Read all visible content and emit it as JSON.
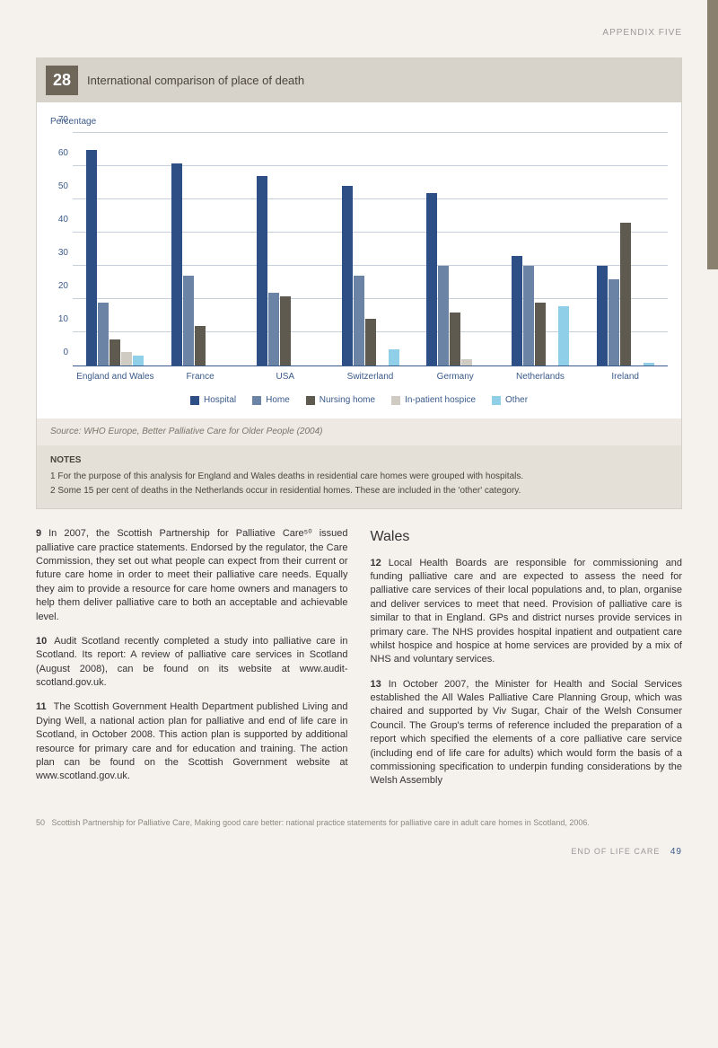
{
  "header": {
    "label": "APPENDIX FIVE"
  },
  "figure": {
    "number": "28",
    "title": "International comparison of place of death",
    "chart": {
      "type": "grouped-bar",
      "ylabel": "Percentage",
      "ylim": [
        0,
        70
      ],
      "ytick_step": 10,
      "yticks": [
        0,
        10,
        20,
        30,
        40,
        50,
        60,
        70
      ],
      "grid_color": "#c5d0dc",
      "axis_color": "#3a5a8a",
      "background_color": "#ffffff",
      "categories": [
        "England and Wales",
        "France",
        "USA",
        "Switzerland",
        "Germany",
        "Netherlands",
        "Ireland"
      ],
      "series": [
        {
          "name": "Hospital",
          "color": "#2d4f86"
        },
        {
          "name": "Home",
          "color": "#6b84a5"
        },
        {
          "name": "Nursing home",
          "color": "#5f5a50"
        },
        {
          "name": "In-patient hospice",
          "color": "#cfcbc2"
        },
        {
          "name": "Other",
          "color": "#8fd0e8"
        }
      ],
      "data": [
        [
          65,
          19,
          8,
          4,
          3
        ],
        [
          61,
          27,
          12,
          0,
          0
        ],
        [
          57,
          22,
          21,
          0,
          0
        ],
        [
          54,
          27,
          14,
          0,
          5
        ],
        [
          52,
          30,
          16,
          2,
          0
        ],
        [
          33,
          30,
          19,
          0,
          18
        ],
        [
          30,
          26,
          43,
          0,
          1
        ]
      ]
    },
    "source": "Source: WHO Europe, Better Palliative Care for Older People (2004)",
    "notes_heading": "NOTES",
    "notes": [
      "1  For the purpose of this analysis for England and Wales deaths in residential care homes were grouped with hospitals.",
      "2  Some 15 per cent of deaths in the Netherlands occur in residential homes. These are included in the 'other' category."
    ]
  },
  "left_column": {
    "paras": [
      {
        "num": "9",
        "text": "In 2007, the Scottish Partnership for Palliative Care⁵⁰ issued palliative care practice statements. Endorsed by the regulator, the Care Commission, they set out what people can expect from their current or future care home in order to meet their palliative care needs. Equally they aim to provide a resource for care home owners and managers to help them deliver palliative care to both an acceptable and achievable level."
      },
      {
        "num": "10",
        "text": "Audit Scotland recently completed a study into palliative care in Scotland. Its report: A review of palliative care services in Scotland (August 2008), can be found on its website at www.audit-scotland.gov.uk."
      },
      {
        "num": "11",
        "text": "The Scottish Government Health Department published Living and Dying Well, a national action plan for palliative and end of life care in Scotland, in October 2008. This action plan is supported by additional resource for primary care and for education and training. The action plan can be found on the Scottish Government website at www.scotland.gov.uk."
      }
    ]
  },
  "right_column": {
    "heading": "Wales",
    "paras": [
      {
        "num": "12",
        "text": "Local Health Boards are responsible for commissioning and funding palliative care and are expected to assess the need for palliative care services of their local populations and, to plan, organise and deliver services to meet that need. Provision of palliative care is similar to that in England. GPs and district nurses provide services in primary care. The NHS provides hospital inpatient and outpatient care whilst hospice and hospice at home services are provided by a mix of NHS and voluntary services."
      },
      {
        "num": "13",
        "text": "In October 2007, the Minister for Health and Social Services established the All Wales Palliative Care Planning Group, which was chaired and supported by Viv Sugar, Chair of the Welsh Consumer Council. The Group's terms of reference included the preparation of a report which specified the elements of a core palliative care service (including end of life care for adults) which would form the basis of a commissioning specification to underpin funding considerations by the Welsh Assembly"
      }
    ]
  },
  "footnote": {
    "num": "50",
    "text": "Scottish Partnership for Palliative Care, Making good care better: national practice statements for palliative care in adult care homes in Scotland, 2006."
  },
  "footer": {
    "label": "END OF LIFE CARE",
    "page": "49"
  }
}
